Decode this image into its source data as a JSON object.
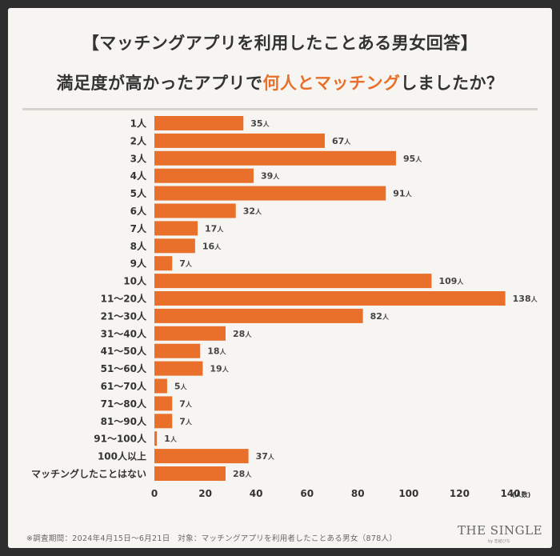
{
  "title_line1": "【マッチングアプリを利用したことある男女回答】",
  "title_line2_pre": "満足度が高かったアプリで",
  "title_line2_highlight": "何人とマッチング",
  "title_line2_post": "しましたか？",
  "footnote": "※調査期間：2024年4月15日～6月21日　対象：マッチングアプリを利用者したことある男女（878人）",
  "logo": "THE SINGLE",
  "logo_sub": "by 恋結びな",
  "colors": {
    "bar": "#e8702a",
    "text": "#333333",
    "highlight": "#e8702a"
  },
  "chart_data": {
    "type": "bar",
    "orientation": "horizontal",
    "categories": [
      "1人",
      "2人",
      "3人",
      "4人",
      "5人",
      "6人",
      "7人",
      "8人",
      "9人",
      "10人",
      "11～20人",
      "21～30人",
      "31～40人",
      "41～50人",
      "51～60人",
      "61～70人",
      "71～80人",
      "81～90人",
      "91～100人",
      "100人以上",
      "マッチングしたことはない"
    ],
    "values": [
      35,
      67,
      95,
      39,
      91,
      32,
      17,
      16,
      7,
      109,
      138,
      82,
      28,
      18,
      19,
      5,
      7,
      7,
      1,
      37,
      28
    ],
    "value_suffix": "人",
    "xlim": [
      0,
      140
    ],
    "xticks": [
      0,
      20,
      40,
      60,
      80,
      100,
      120,
      140
    ],
    "xlabel_unit": "(人数)",
    "grid": false
  }
}
